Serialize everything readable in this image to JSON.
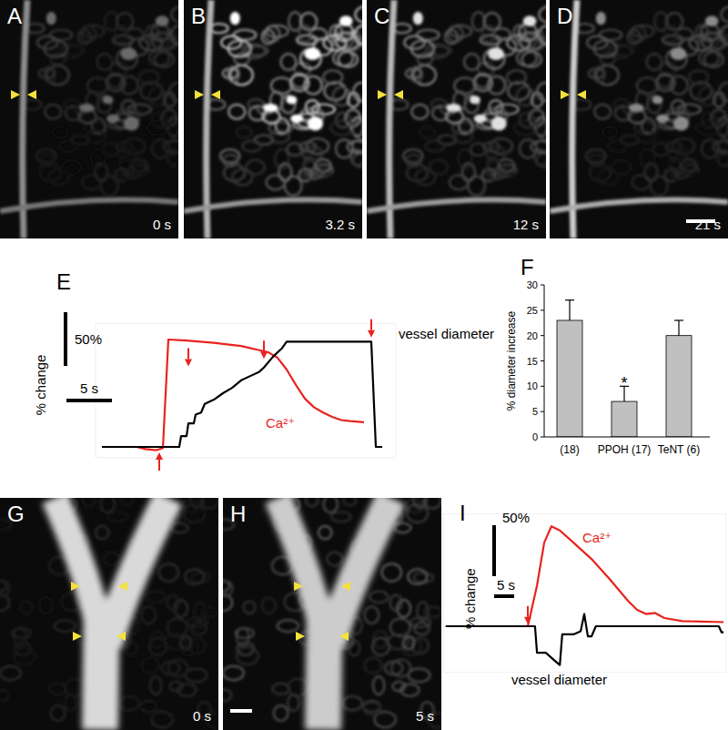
{
  "images": [
    {
      "label": "A",
      "time": "0 s"
    },
    {
      "label": "B",
      "time": "3.2 s"
    },
    {
      "label": "C",
      "time": "12 s"
    },
    {
      "label": "D",
      "time": "21 s"
    },
    {
      "label": "G",
      "time": "0 s"
    },
    {
      "label": "H",
      "time": "5 s"
    }
  ],
  "chart_data": [
    {
      "type": "line",
      "title": "E",
      "y_label": "% change",
      "tick_labels": false,
      "xlim": [
        -7,
        26
      ],
      "ylim": [
        -10,
        115
      ],
      "scale_bars": [
        {
          "axis": "y",
          "value": 50,
          "label": "50%"
        },
        {
          "axis": "x",
          "value": 5,
          "label": "5 s"
        }
      ],
      "arrows": [
        {
          "x": 0,
          "y": -5,
          "direction": "up"
        },
        {
          "x": 3.2,
          "y": 75,
          "direction": "down"
        },
        {
          "x": 11.5,
          "y": 82,
          "direction": "down"
        },
        {
          "x": 23.3,
          "y": 102,
          "direction": "down"
        }
      ],
      "series": [
        {
          "name": "Ca²⁺",
          "color": "#e8231e",
          "x": [
            -6.3,
            -2.5,
            -1.5,
            -0.3,
            0.4,
            1.0,
            3,
            6,
            9,
            11,
            12,
            13,
            14,
            15,
            16,
            17,
            18,
            19,
            20,
            21,
            22.5
          ],
          "values": [
            0,
            0,
            -2,
            -3,
            -1,
            100,
            99,
            97,
            94,
            90,
            88,
            83,
            72,
            58,
            45,
            37,
            32,
            28,
            25,
            24,
            23
          ]
        },
        {
          "name": "vessel diameter",
          "color": "#000000",
          "x": [
            -6.3,
            2.2,
            2.4,
            3.0,
            3.2,
            3.8,
            4.0,
            4.6,
            5.0,
            6.0,
            7.0,
            8.0,
            9.0,
            10.0,
            11.0,
            11.5,
            12.5,
            13.5,
            14.0,
            23.3,
            23.8,
            24.5
          ],
          "values": [
            0,
            0,
            10,
            10,
            22,
            22,
            30,
            32,
            40,
            44,
            50,
            55,
            62,
            66,
            70,
            74,
            84,
            92,
            98,
            98,
            0,
            0
          ]
        }
      ]
    },
    {
      "type": "bar",
      "title": "F",
      "y_label": "% diameter increase",
      "categories": [
        "(18)",
        "PPOH (17)",
        "TeNT (6)"
      ],
      "values": [
        23,
        7,
        20
      ],
      "errors": [
        4,
        3,
        3
      ],
      "color": "#c0c0c0",
      "ylim": [
        0,
        30
      ],
      "yticks": [
        0,
        5,
        10,
        15,
        20,
        25,
        30
      ],
      "annotations": [
        {
          "text": "*",
          "x": 1,
          "y": 11
        }
      ]
    },
    {
      "type": "line",
      "title": "I",
      "y_label": "% change",
      "tick_labels": false,
      "xlim": [
        -21,
        49.5
      ],
      "ylim": [
        -45,
        110
      ],
      "scale_bars": [
        {
          "axis": "y",
          "value": 50,
          "label": "50%"
        },
        {
          "axis": "x",
          "value": 5,
          "label": "5 s"
        }
      ],
      "arrows": [
        {
          "x": 0,
          "y": 2,
          "direction": "down"
        }
      ],
      "series": [
        {
          "name": "Ca²⁺",
          "color": "#e8231e",
          "x": [
            -20.5,
            -1.1,
            0,
            2.3,
            4.1,
            5.9,
            8,
            11.4,
            15.9,
            20.5,
            25,
            27.3,
            29.5,
            31.8,
            34.1,
            38.6,
            48.9
          ],
          "values": [
            0,
            0,
            0,
            40,
            82,
            98,
            94,
            82,
            66,
            46,
            25,
            16,
            12,
            13,
            8,
            5,
            4
          ]
        },
        {
          "name": "vessel diameter",
          "color": "#000000",
          "x": [
            -20.5,
            1.8,
            2.3,
            4.5,
            6.8,
            8,
            8.6,
            11.4,
            13.2,
            14.1,
            15,
            15.9,
            17,
            47.7,
            48.4,
            48.9
          ],
          "values": [
            0,
            0,
            -26,
            -26,
            -34,
            -38,
            -8,
            -8,
            -5,
            12,
            -10,
            -10,
            0,
            0,
            -6,
            -6
          ]
        }
      ]
    }
  ]
}
